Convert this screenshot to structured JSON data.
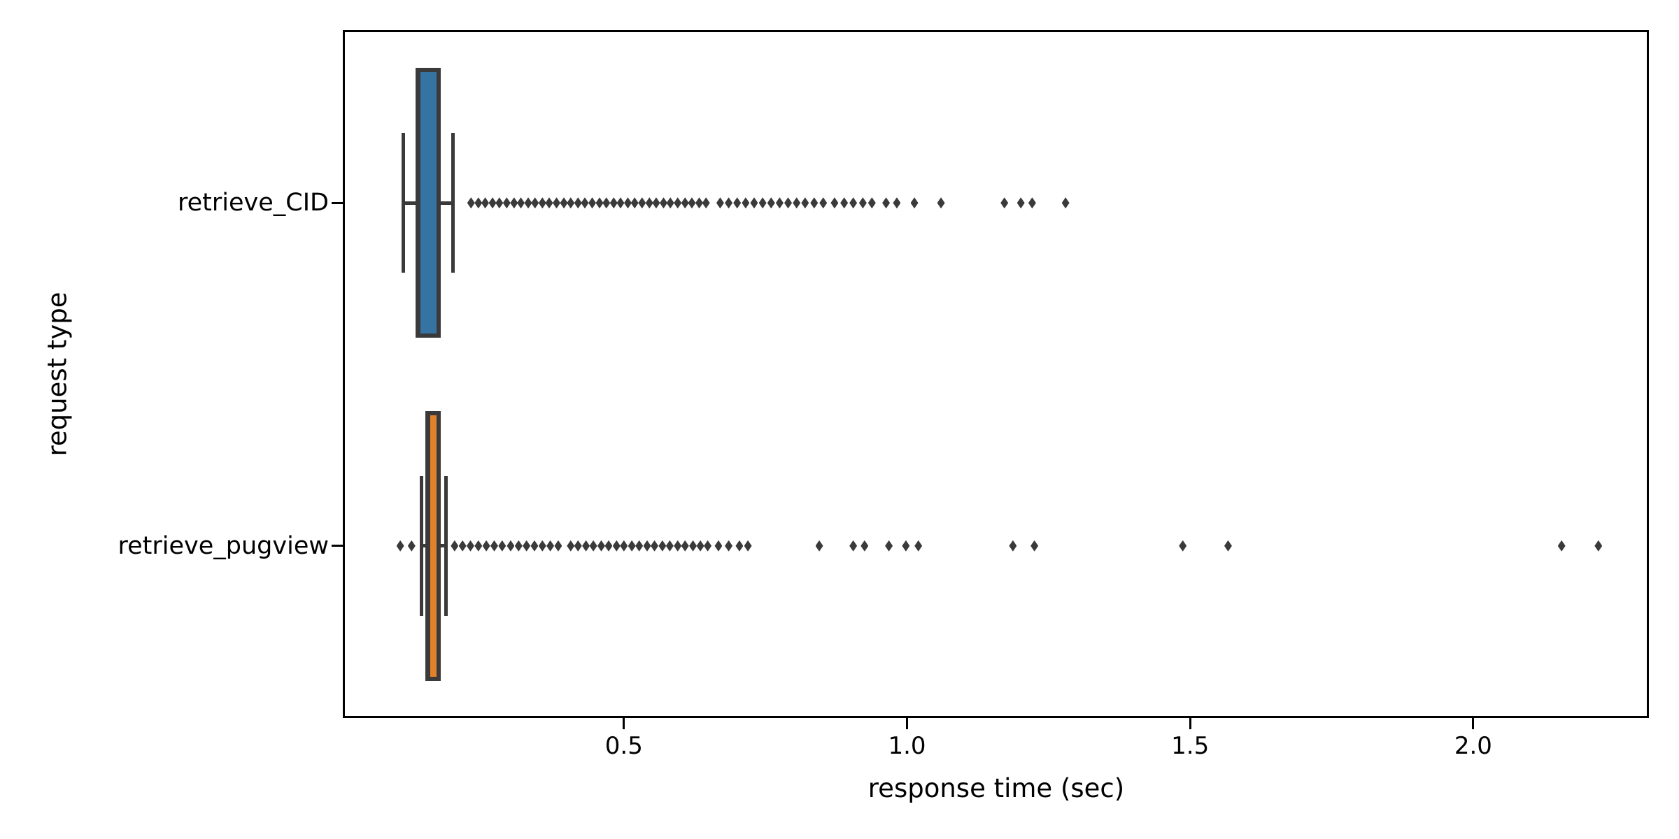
{
  "chart_data": {
    "type": "boxplot",
    "orientation": "horizontal",
    "title": "",
    "xlabel": "response time (sec)",
    "ylabel": "request type",
    "categories": [
      "retrieve_CID",
      "retrieve_pugview"
    ],
    "x_ticks": {
      "values": [
        0.5,
        1.0,
        1.5,
        2.0
      ],
      "labels": [
        "0.5",
        "1.0",
        "1.5",
        "2.0"
      ]
    },
    "xlim": [
      0.006,
      2.309
    ],
    "grid": false,
    "legend": "none",
    "marker": "thin-diamond",
    "colors": {
      "box_retrieve_CID": "#3573a3",
      "box_retrieve_pugview": "#e1812b",
      "edges_whiskers_fliers": "#3a3a3a",
      "spines_and_text": "#000000",
      "background": "#ffffff"
    },
    "series": [
      {
        "name": "retrieve_CID",
        "box_color": "#3573a3",
        "stats": {
          "whisker_low": 0.111,
          "q1": 0.132,
          "median": 0.133,
          "q3": 0.176,
          "whisker_high": 0.198
        },
        "outliers": [
          0.23,
          0.243,
          0.255,
          0.268,
          0.28,
          0.293,
          0.306,
          0.318,
          0.331,
          0.343,
          0.356,
          0.368,
          0.381,
          0.394,
          0.406,
          0.419,
          0.431,
          0.444,
          0.457,
          0.469,
          0.482,
          0.494,
          0.507,
          0.519,
          0.532,
          0.545,
          0.557,
          0.57,
          0.582,
          0.595,
          0.608,
          0.62,
          0.633,
          0.645,
          0.67,
          0.685,
          0.7,
          0.715,
          0.73,
          0.745,
          0.76,
          0.775,
          0.79,
          0.805,
          0.82,
          0.836,
          0.852,
          0.872,
          0.889,
          0.905,
          0.922,
          0.938,
          0.963,
          0.982,
          1.013,
          1.06,
          1.172,
          1.201,
          1.221,
          1.28
        ]
      },
      {
        "name": "retrieve_pugview",
        "box_color": "#e1812b",
        "stats": {
          "whisker_low": 0.142,
          "q1": 0.149,
          "median": 0.15,
          "q3": 0.176,
          "whisker_high": 0.186
        },
        "outliers": [
          0.105,
          0.125,
          0.201,
          0.215,
          0.229,
          0.243,
          0.257,
          0.271,
          0.285,
          0.3,
          0.314,
          0.328,
          0.342,
          0.356,
          0.37,
          0.384,
          0.406,
          0.419,
          0.433,
          0.446,
          0.46,
          0.473,
          0.487,
          0.5,
          0.514,
          0.527,
          0.541,
          0.554,
          0.568,
          0.581,
          0.595,
          0.608,
          0.622,
          0.635,
          0.648,
          0.667,
          0.685,
          0.704,
          0.719,
          0.845,
          0.905,
          0.925,
          0.968,
          0.998,
          1.02,
          1.187,
          1.225,
          1.487,
          1.567,
          2.156,
          2.221
        ]
      }
    ]
  }
}
